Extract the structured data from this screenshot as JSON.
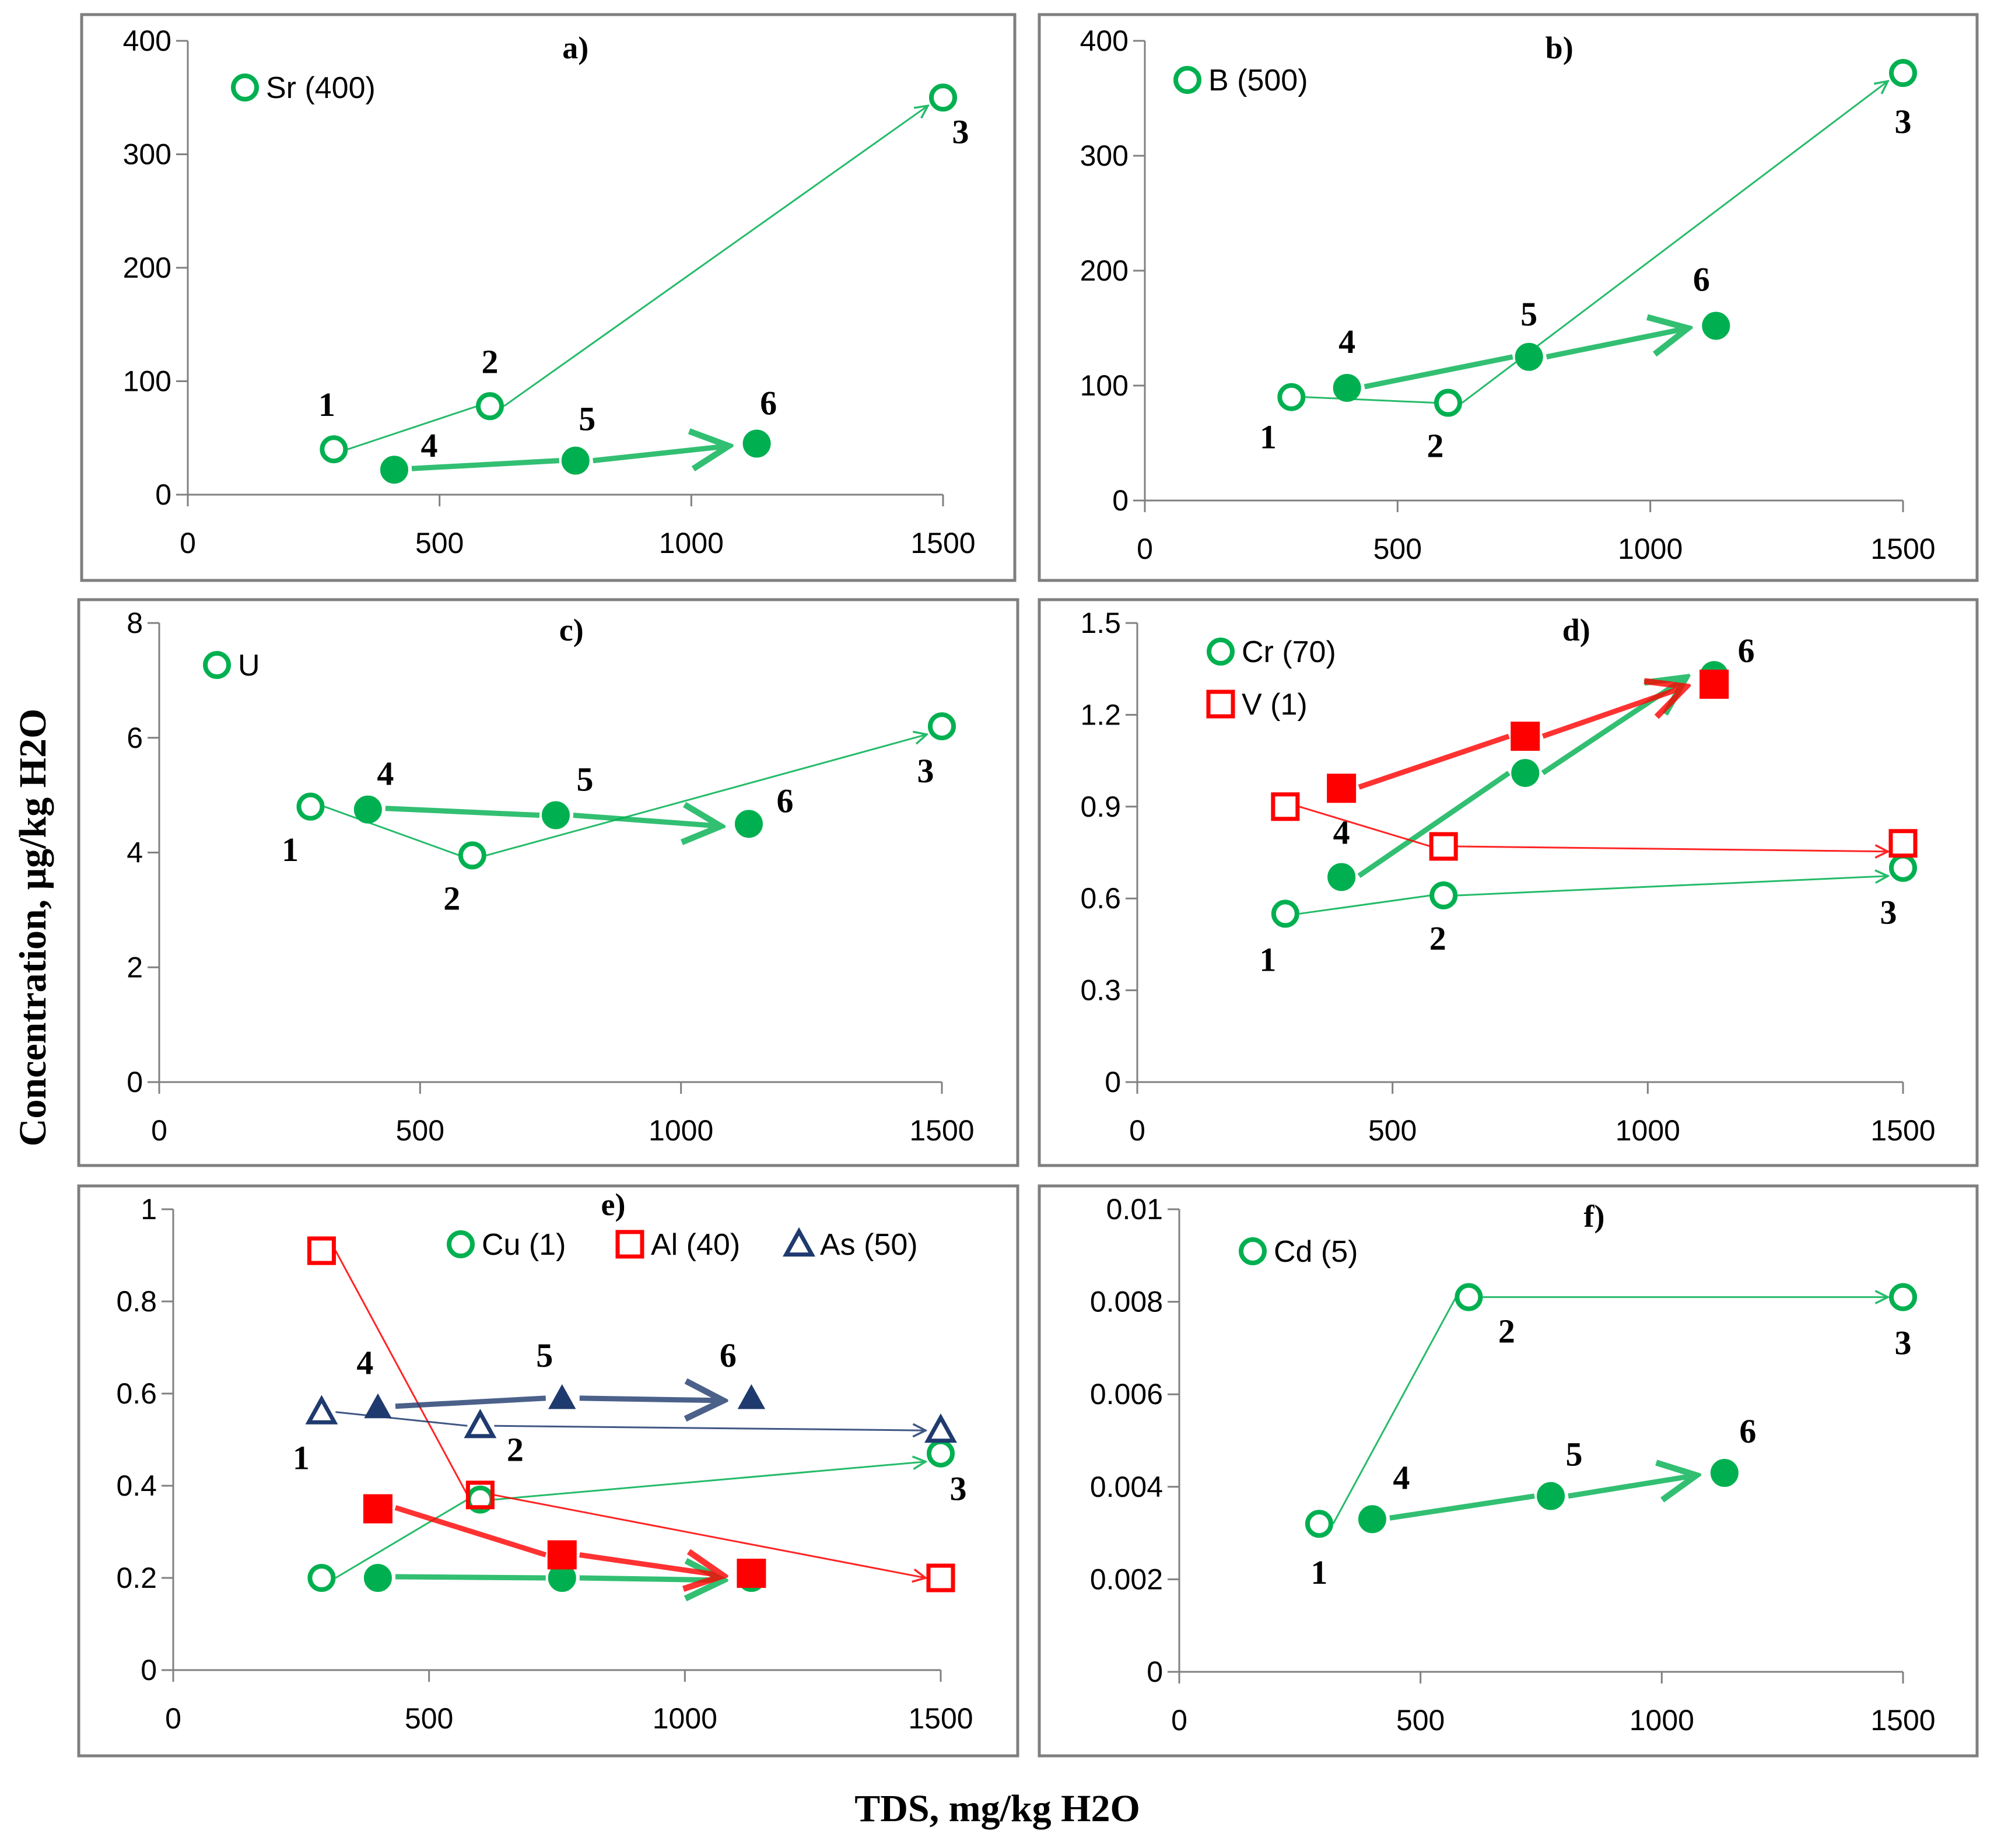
{
  "figure": {
    "ylabel": "Concentration, μg/kg H2O",
    "xlabel": "TDS, mg/kg H2O"
  },
  "colors": {
    "green": "#00b050",
    "red": "#ff0000",
    "navy": "#1f3a6e",
    "frame": "#7f7f7f",
    "axis": "#808080"
  },
  "chart_data": [
    {
      "id": "a",
      "type": "scatter",
      "panel_label": "a)",
      "xlim": [
        0,
        1500
      ],
      "xticks": [
        "0",
        "500",
        "1000",
        "1500"
      ],
      "ylim": [
        0,
        400
      ],
      "yticks": [
        "0",
        "100",
        "200",
        "300",
        "400"
      ],
      "legend": [
        {
          "name": "Sr (400)",
          "marker": "circle",
          "color": "green"
        }
      ],
      "series": [
        {
          "name": "Sr (400)",
          "color": "green",
          "points": [
            {
              "id": "1",
              "x": 290,
              "y": 40
            },
            {
              "id": "2",
              "x": 600,
              "y": 78
            },
            {
              "id": "3",
              "x": 1500,
              "y": 350
            },
            {
              "id": "4",
              "x": 410,
              "y": 22
            },
            {
              "id": "5",
              "x": 770,
              "y": 30
            },
            {
              "id": "6",
              "x": 1130,
              "y": 45
            }
          ]
        }
      ]
    },
    {
      "id": "b",
      "type": "scatter",
      "panel_label": "b)",
      "xlim": [
        0,
        1500
      ],
      "xticks": [
        "0",
        "500",
        "1000",
        "1500"
      ],
      "ylim": [
        0,
        400
      ],
      "yticks": [
        "0",
        "100",
        "200",
        "300",
        "400"
      ],
      "legend": [
        {
          "name": "B (500)",
          "marker": "circle",
          "color": "green"
        }
      ],
      "series": [
        {
          "name": "B (500)",
          "color": "green",
          "points": [
            {
              "id": "1",
              "x": 290,
              "y": 90
            },
            {
              "id": "2",
              "x": 600,
              "y": 85
            },
            {
              "id": "3",
              "x": 1500,
              "y": 372
            },
            {
              "id": "4",
              "x": 400,
              "y": 98
            },
            {
              "id": "5",
              "x": 760,
              "y": 125
            },
            {
              "id": "6",
              "x": 1130,
              "y": 152
            }
          ]
        }
      ]
    },
    {
      "id": "c",
      "type": "scatter",
      "panel_label": "c)",
      "xlim": [
        0,
        1500
      ],
      "xticks": [
        "0",
        "500",
        "1000",
        "1500"
      ],
      "ylim": [
        0,
        8
      ],
      "yticks": [
        "0",
        "2",
        "4",
        "6",
        "8"
      ],
      "legend": [
        {
          "name": "U",
          "marker": "circle",
          "color": "green"
        }
      ],
      "series": [
        {
          "name": "U",
          "color": "green",
          "points": [
            {
              "id": "1",
              "x": 290,
              "y": 4.8
            },
            {
              "id": "2",
              "x": 600,
              "y": 3.95
            },
            {
              "id": "3",
              "x": 1500,
              "y": 6.2
            },
            {
              "id": "4",
              "x": 400,
              "y": 4.75
            },
            {
              "id": "5",
              "x": 760,
              "y": 4.65
            },
            {
              "id": "6",
              "x": 1130,
              "y": 4.5
            }
          ]
        }
      ]
    },
    {
      "id": "d",
      "type": "scatter",
      "panel_label": "d)",
      "xlim": [
        0,
        1500
      ],
      "xticks": [
        "0",
        "500",
        "1000",
        "1500"
      ],
      "ylim": [
        0,
        1.5
      ],
      "yticks": [
        "0",
        "0.3",
        "0.6",
        "0.9",
        "1.2",
        "1.5"
      ],
      "legend": [
        {
          "name": "Cr (70)",
          "marker": "circle",
          "color": "green"
        },
        {
          "name": "V (1)",
          "marker": "square",
          "color": "red"
        }
      ],
      "series": [
        {
          "name": "Cr (70)",
          "color": "green",
          "points": [
            {
              "id": "1",
              "x": 290,
              "y": 0.55
            },
            {
              "id": "2",
              "x": 600,
              "y": 0.61
            },
            {
              "id": "3",
              "x": 1500,
              "y": 0.7
            },
            {
              "id": "4",
              "x": 400,
              "y": 0.67
            },
            {
              "id": "5",
              "x": 760,
              "y": 1.01
            },
            {
              "id": "6",
              "x": 1130,
              "y": 1.33
            }
          ]
        },
        {
          "name": "V (1)",
          "color": "red",
          "points": [
            {
              "id": "1",
              "x": 290,
              "y": 0.9
            },
            {
              "id": "2",
              "x": 600,
              "y": 0.77
            },
            {
              "id": "3",
              "x": 1500,
              "y": 0.78
            },
            {
              "id": "4",
              "x": 400,
              "y": 0.96
            },
            {
              "id": "5",
              "x": 760,
              "y": 1.13
            },
            {
              "id": "6",
              "x": 1130,
              "y": 1.3
            }
          ]
        }
      ]
    },
    {
      "id": "e",
      "type": "scatter",
      "panel_label": "e)",
      "xlim": [
        0,
        1500
      ],
      "xticks": [
        "0",
        "500",
        "1000",
        "1500"
      ],
      "ylim": [
        0,
        1
      ],
      "yticks": [
        "0",
        "0.2",
        "0.4",
        "0.6",
        "0.8",
        "1"
      ],
      "legend": [
        {
          "name": "Cu (1)",
          "marker": "circle",
          "color": "green"
        },
        {
          "name": "Al (40)",
          "marker": "square",
          "color": "red"
        },
        {
          "name": "As (50)",
          "marker": "triangle",
          "color": "navy"
        }
      ],
      "series": [
        {
          "name": "Cu (1)",
          "color": "green",
          "points": [
            {
              "id": "1",
              "x": 290,
              "y": 0.2
            },
            {
              "id": "2",
              "x": 600,
              "y": 0.37
            },
            {
              "id": "3",
              "x": 1500,
              "y": 0.47
            },
            {
              "id": "4",
              "x": 400,
              "y": 0.2
            },
            {
              "id": "5",
              "x": 760,
              "y": 0.2
            },
            {
              "id": "6",
              "x": 1130,
              "y": 0.2
            }
          ]
        },
        {
          "name": "Al (40)",
          "color": "red",
          "points": [
            {
              "id": "1",
              "x": 290,
              "y": 0.91
            },
            {
              "id": "2",
              "x": 600,
              "y": 0.38
            },
            {
              "id": "3",
              "x": 1500,
              "y": 0.2
            },
            {
              "id": "4",
              "x": 400,
              "y": 0.35
            },
            {
              "id": "5",
              "x": 760,
              "y": 0.25
            },
            {
              "id": "6",
              "x": 1130,
              "y": 0.21
            }
          ]
        },
        {
          "name": "As (50)",
          "color": "navy",
          "points": [
            {
              "id": "1",
              "x": 290,
              "y": 0.56
            },
            {
              "id": "2",
              "x": 600,
              "y": 0.53
            },
            {
              "id": "3",
              "x": 1500,
              "y": 0.52
            },
            {
              "id": "4",
              "x": 400,
              "y": 0.57
            },
            {
              "id": "5",
              "x": 760,
              "y": 0.59
            },
            {
              "id": "6",
              "x": 1130,
              "y": 0.59
            }
          ]
        }
      ]
    },
    {
      "id": "f",
      "type": "scatter",
      "panel_label": "f)",
      "xlim": [
        0,
        1500
      ],
      "xticks": [
        "0",
        "500",
        "1000",
        "1500"
      ],
      "ylim": [
        0,
        0.01
      ],
      "yticks": [
        "0",
        "0.002",
        "0.004",
        "0.006",
        "0.008",
        "0.01"
      ],
      "legend": [
        {
          "name": "Cd (5)",
          "marker": "circle",
          "color": "green"
        }
      ],
      "series": [
        {
          "name": "Cd (5)",
          "color": "green",
          "points": [
            {
              "id": "1",
              "x": 290,
              "y": 0.0032
            },
            {
              "id": "2",
              "x": 600,
              "y": 0.0081
            },
            {
              "id": "3",
              "x": 1500,
              "y": 0.0081
            },
            {
              "id": "4",
              "x": 400,
              "y": 0.0033
            },
            {
              "id": "5",
              "x": 770,
              "y": 0.0038
            },
            {
              "id": "6",
              "x": 1130,
              "y": 0.0043
            }
          ]
        }
      ]
    }
  ]
}
